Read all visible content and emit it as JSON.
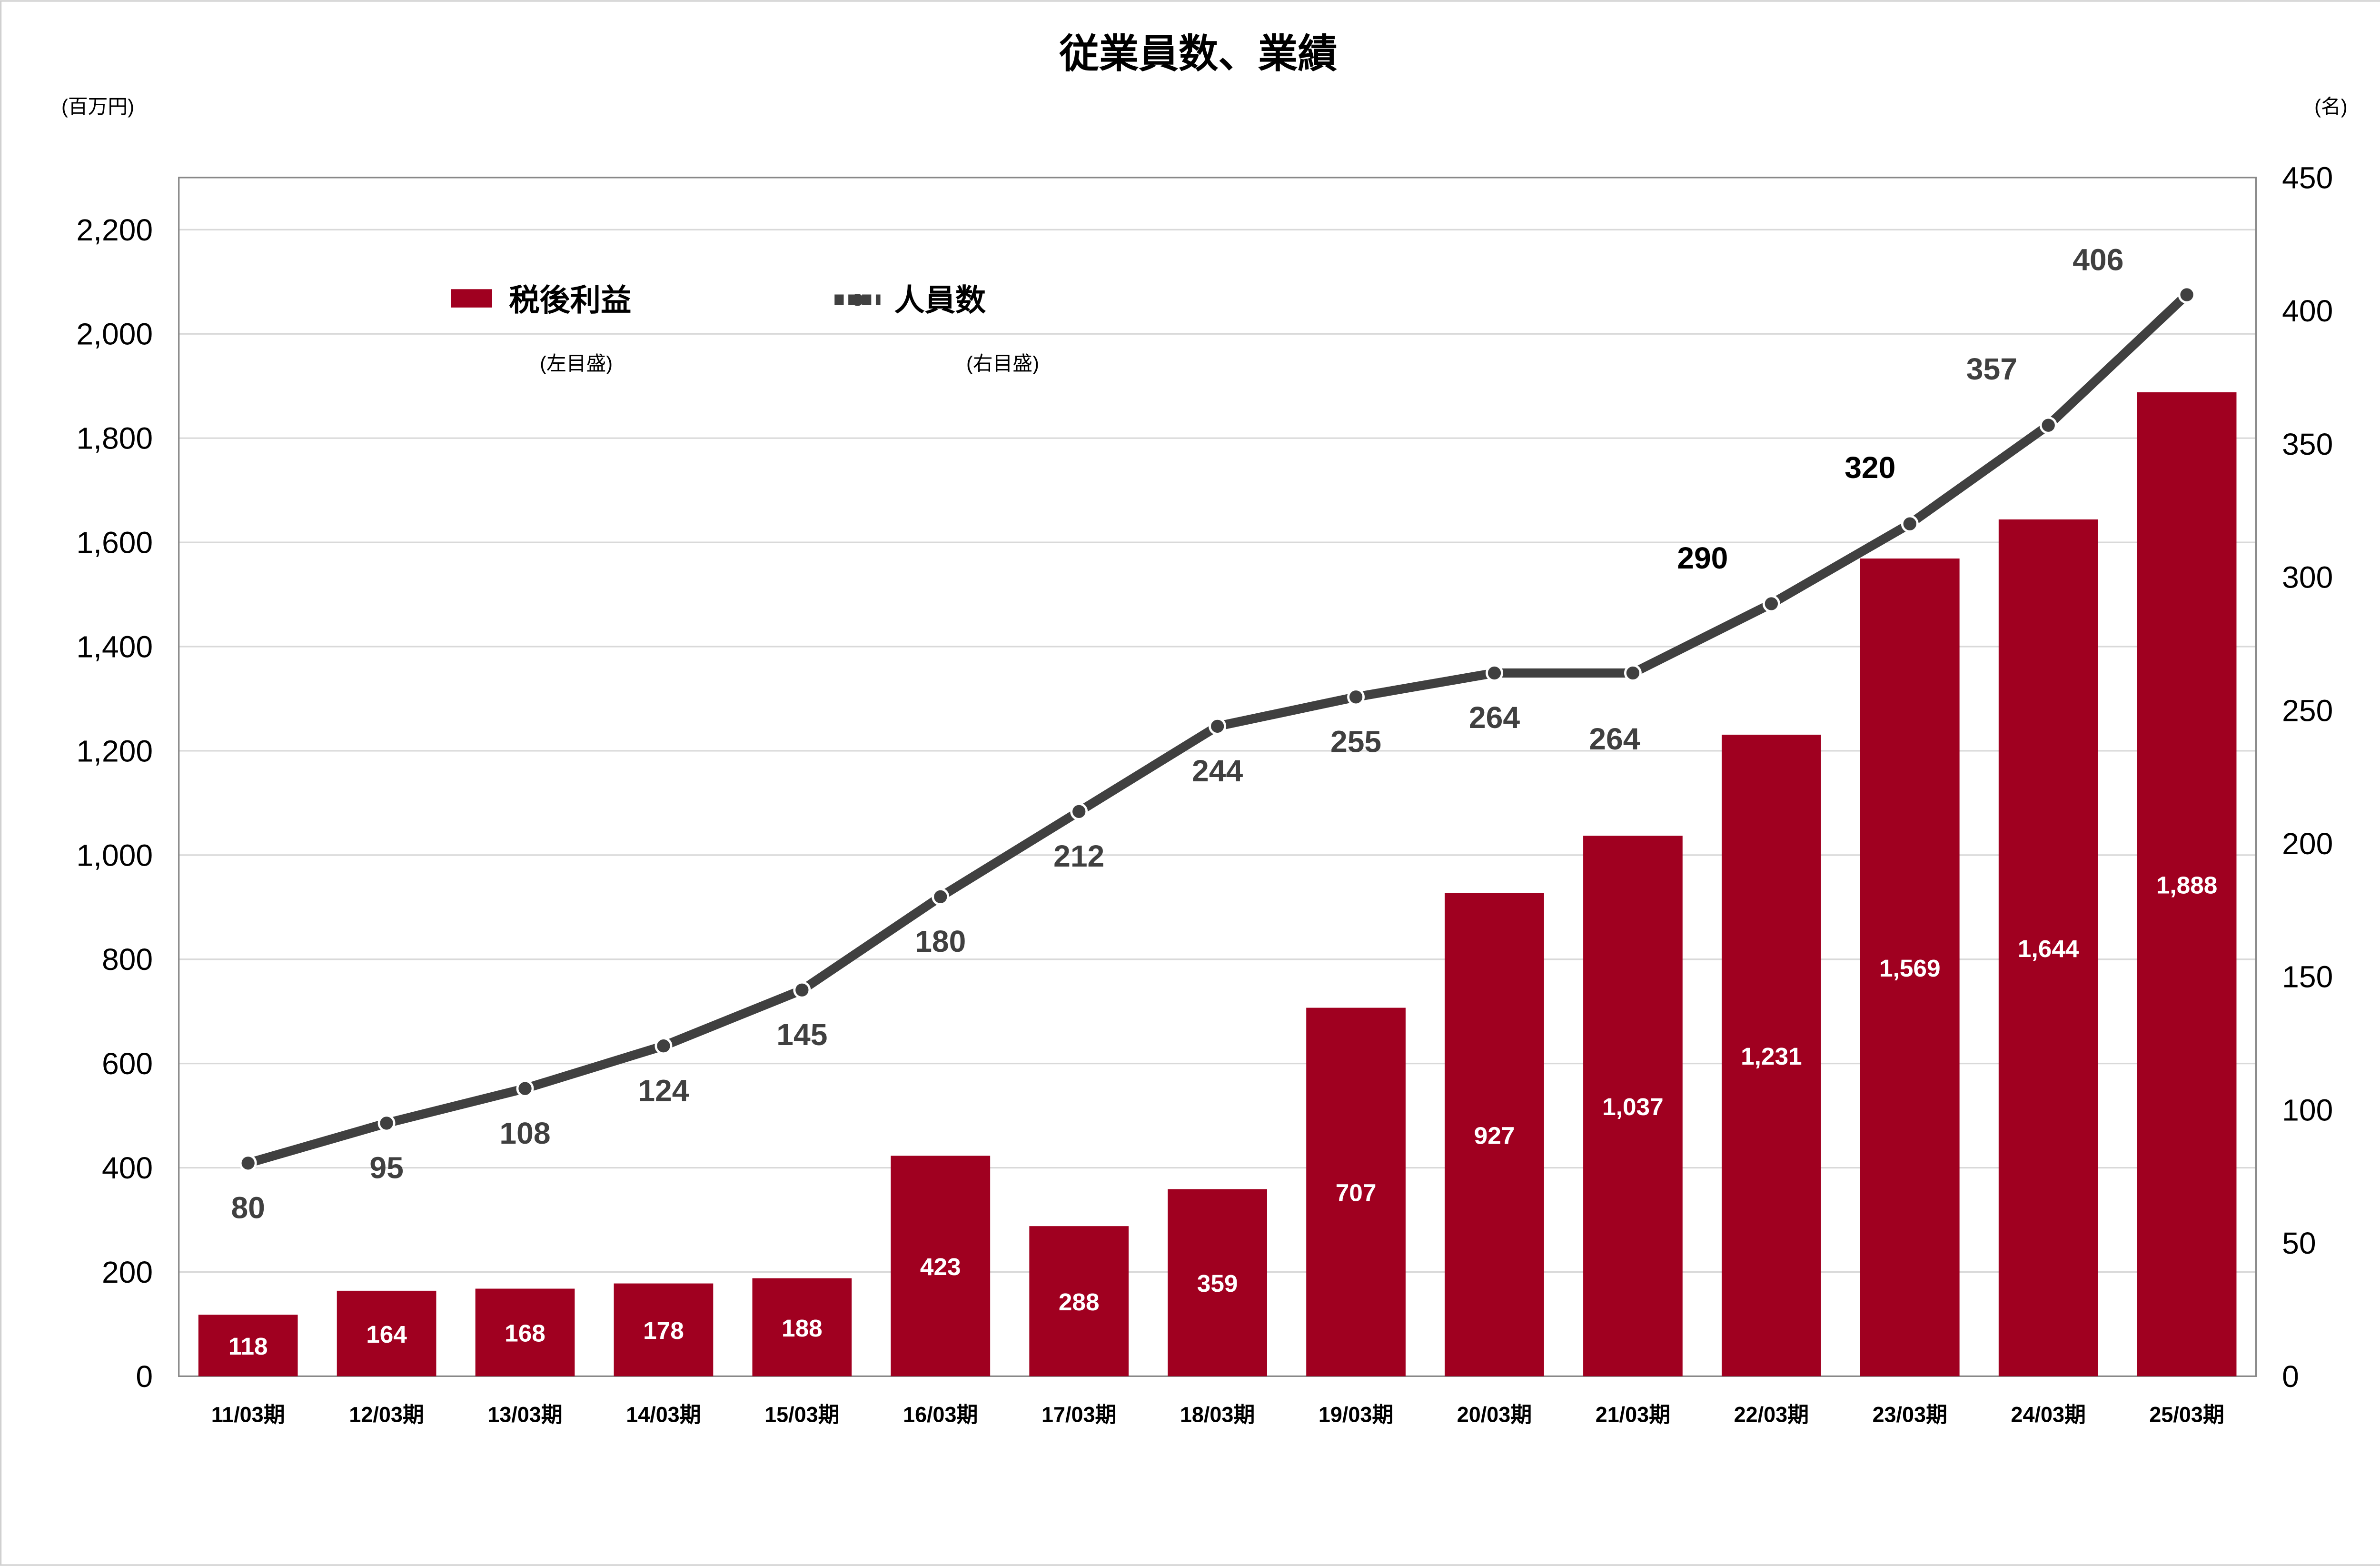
{
  "chart_data": {
    "type": "bar+line",
    "title": "従業員数、業績",
    "left_axis_unit": "(百万円)",
    "right_axis_unit": "(名)",
    "categories": [
      "11/03期",
      "12/03期",
      "13/03期",
      "14/03期",
      "15/03期",
      "16/03期",
      "17/03期",
      "18/03期",
      "19/03期",
      "20/03期",
      "21/03期",
      "22/03期",
      "23/03期",
      "24/03期",
      "25/03期"
    ],
    "series": [
      {
        "name": "税後利益",
        "axis_note": "(左目盛)",
        "type": "bar",
        "axis": "left",
        "color": "#A00020",
        "values": [
          118,
          164,
          168,
          178,
          188,
          423,
          288,
          359,
          707,
          927,
          1037,
          1231,
          1569,
          1644,
          1888
        ]
      },
      {
        "name": "人員数",
        "axis_note": "(右目盛)",
        "type": "line",
        "axis": "right",
        "color": "#404040",
        "values": [
          80,
          95,
          108,
          124,
          145,
          180,
          212,
          244,
          255,
          264,
          264,
          290,
          320,
          357,
          406
        ]
      }
    ],
    "left_ylim": [
      0,
      2300
    ],
    "left_ticks": [
      0,
      200,
      400,
      600,
      800,
      1000,
      1200,
      1400,
      1600,
      1800,
      2000,
      2200
    ],
    "right_ylim": [
      0,
      450
    ],
    "right_ticks": [
      0,
      50,
      100,
      150,
      200,
      250,
      300,
      350,
      400,
      450
    ],
    "grid": true,
    "legend": "top-left"
  }
}
